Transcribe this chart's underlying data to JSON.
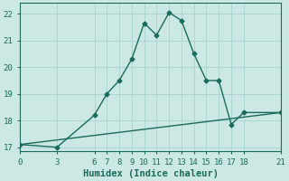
{
  "title": "",
  "xlabel": "Humidex (Indice chaleur)",
  "ylabel": "",
  "bg_color": "#cce8e4",
  "line_color": "#1a6b5a",
  "xlim": [
    0,
    21
  ],
  "ylim": [
    16.85,
    22.4
  ],
  "xticks": [
    0,
    3,
    6,
    7,
    8,
    9,
    10,
    11,
    12,
    13,
    14,
    15,
    16,
    17,
    18,
    21
  ],
  "yticks": [
    17,
    18,
    19,
    20,
    21,
    22
  ],
  "curve_x": [
    0,
    3,
    6,
    7,
    8,
    9,
    10,
    11,
    12,
    13,
    14,
    15,
    16,
    17,
    18,
    21
  ],
  "curve_y": [
    17.1,
    17.0,
    18.2,
    19.0,
    19.5,
    20.3,
    21.65,
    21.2,
    22.05,
    21.75,
    20.5,
    19.5,
    19.5,
    17.85,
    18.3,
    18.3
  ],
  "line_x": [
    0,
    21
  ],
  "line_y": [
    17.1,
    18.3
  ],
  "marker": "D",
  "marker_size": 2.5,
  "linewidth": 1.0,
  "grid_color": "#aad4cf",
  "tick_fontsize": 6.5,
  "label_fontsize": 7.5
}
